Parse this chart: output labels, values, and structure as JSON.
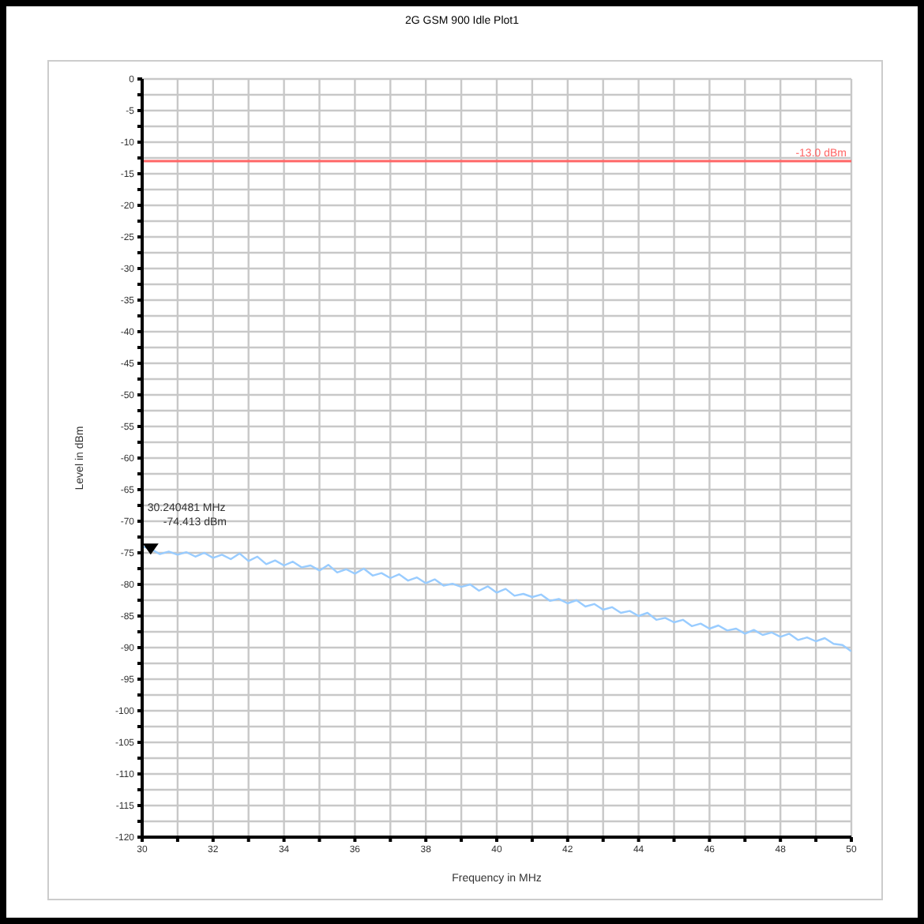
{
  "chart_data": {
    "type": "line",
    "title": "2G GSM 900 Idle Plot1",
    "xlabel": "Frequency in MHz",
    "ylabel": "Level in dBm",
    "xlim": [
      30,
      50
    ],
    "ylim": [
      -120,
      0
    ],
    "xticks": [
      30,
      {
        "value": 31,
        "label": null
      },
      32,
      {
        "value": 33,
        "label": null
      },
      34,
      {
        "value": 35,
        "label": null
      },
      36,
      {
        "value": 37,
        "label": null
      },
      38,
      {
        "value": 39,
        "label": null
      },
      40,
      {
        "value": 41,
        "label": null
      },
      42,
      {
        "value": 43,
        "label": null
      },
      44,
      {
        "value": 45,
        "label": null
      },
      46,
      {
        "value": 47,
        "label": null
      },
      48,
      {
        "value": 49,
        "label": null
      },
      50
    ],
    "yticks": [
      0,
      {
        "value": -2.5,
        "label": null
      },
      -5,
      {
        "value": -7.5,
        "label": null
      },
      -10,
      {
        "value": -12.5,
        "label": null
      },
      -15,
      {
        "value": -17.5,
        "label": null
      },
      -20,
      {
        "value": -22.5,
        "label": null
      },
      -25,
      {
        "value": -27.5,
        "label": null
      },
      -30,
      {
        "value": -32.5,
        "label": null
      },
      -35,
      {
        "value": -37.5,
        "label": null
      },
      -40,
      {
        "value": -42.5,
        "label": null
      },
      -45,
      {
        "value": -47.5,
        "label": null
      },
      -50,
      {
        "value": -52.5,
        "label": null
      },
      -55,
      {
        "value": -57.5,
        "label": null
      },
      -60,
      {
        "value": -62.5,
        "label": null
      },
      -65,
      {
        "value": -67.5,
        "label": null
      },
      -70,
      {
        "value": -72.5,
        "label": null
      },
      -75,
      {
        "value": -77.5,
        "label": null
      },
      -80,
      {
        "value": -82.5,
        "label": null
      },
      -85,
      {
        "value": -87.5,
        "label": null
      },
      -90,
      {
        "value": -92.5,
        "label": null
      },
      -95,
      {
        "value": -97.5,
        "label": null
      },
      -100,
      {
        "value": -102.5,
        "label": null
      },
      -105,
      {
        "value": -107.5,
        "label": null
      },
      -110,
      {
        "value": -112.5,
        "label": null
      },
      -115,
      {
        "value": -117.5,
        "label": null
      },
      -120
    ],
    "grid": true,
    "marker": "none",
    "line_style": "solid",
    "series": [
      {
        "color": "#99ccff",
        "x": [
          30,
          30.25,
          30.5,
          30.75,
          31,
          31.25,
          31.5,
          31.75,
          32,
          32.25,
          32.5,
          32.75,
          33,
          33.25,
          33.5,
          33.75,
          34,
          34.25,
          34.5,
          34.75,
          35,
          35.25,
          35.5,
          35.75,
          36,
          36.25,
          36.5,
          36.75,
          37,
          37.25,
          37.5,
          37.75,
          38,
          38.25,
          38.5,
          38.75,
          39,
          39.25,
          39.5,
          39.75,
          40,
          40.25,
          40.5,
          40.75,
          41,
          41.25,
          41.5,
          41.75,
          42,
          42.25,
          42.5,
          42.75,
          43,
          43.25,
          43.5,
          43.75,
          44,
          44.25,
          44.5,
          44.75,
          45,
          45.25,
          45.5,
          45.75,
          46,
          46.25,
          46.5,
          46.75,
          47,
          47.25,
          47.5,
          47.75,
          48,
          48.25,
          48.5,
          48.75,
          49,
          49.25,
          49.5,
          49.75,
          50
        ],
        "values": [
          -74.0,
          -74.4,
          -75.2,
          -74.8,
          -75.3,
          -74.9,
          -75.6,
          -75.0,
          -75.8,
          -75.3,
          -76.0,
          -75.1,
          -76.3,
          -75.6,
          -76.8,
          -76.2,
          -77.0,
          -76.4,
          -77.3,
          -77.0,
          -77.8,
          -76.9,
          -78.1,
          -77.6,
          -78.3,
          -77.5,
          -78.6,
          -78.2,
          -79.0,
          -78.4,
          -79.4,
          -78.9,
          -79.8,
          -79.2,
          -80.2,
          -79.9,
          -80.4,
          -80.0,
          -81.0,
          -80.3,
          -81.3,
          -80.7,
          -81.8,
          -81.5,
          -82.0,
          -81.6,
          -82.6,
          -82.3,
          -83.0,
          -82.5,
          -83.5,
          -83.1,
          -84.0,
          -83.6,
          -84.5,
          -84.2,
          -85.0,
          -84.5,
          -85.6,
          -85.3,
          -86.0,
          -85.6,
          -86.6,
          -86.2,
          -87.0,
          -86.5,
          -87.3,
          -87.0,
          -87.8,
          -87.2,
          -88.0,
          -87.6,
          -88.3,
          -87.8,
          -88.8,
          -88.4,
          -89.0,
          -88.5,
          -89.4,
          -89.6,
          -90.6
        ]
      },
      {
        "type": "scatter",
        "color": "#000000",
        "marker": "triangle",
        "x": [
          30.240481
        ],
        "values": [
          -74.413
        ]
      }
    ],
    "ref_lines": [
      {
        "axis": "y",
        "value": -13,
        "label": "-13.0 dBm",
        "color": "#ff6666",
        "line_style": "solid"
      }
    ],
    "annotations": [
      {
        "text": "30.240481 MHz\n-74.413 dBm",
        "x": 30.240481,
        "y": -74.413
      }
    ]
  }
}
